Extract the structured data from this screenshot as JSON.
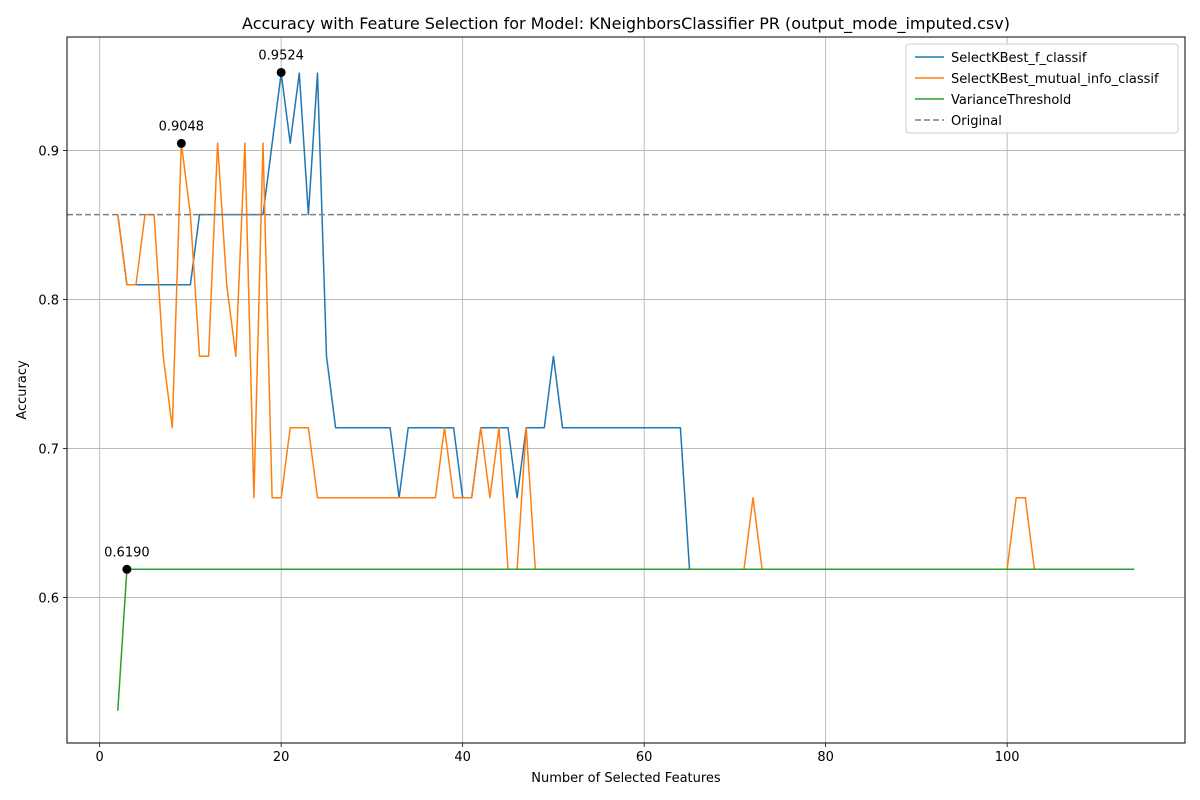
{
  "chart_data": {
    "type": "line",
    "title": "Accuracy with Feature Selection for Model: KNeighborsClassifier PR (output_mode_imputed.csv)",
    "xlabel": "Number of Selected Features",
    "ylabel": "Accuracy",
    "xlim": [
      -3.6,
      119.6
    ],
    "ylim": [
      0.5024,
      0.9762
    ],
    "xticks": [
      0,
      20,
      40,
      60,
      80,
      100
    ],
    "xtick_labels": [
      "0",
      "20",
      "40",
      "60",
      "80",
      "100"
    ],
    "yticks": [
      0.6,
      0.7,
      0.8,
      0.9
    ],
    "ytick_labels": [
      "0.6",
      "0.7",
      "0.8",
      "0.9"
    ],
    "grid": true,
    "legend_position": "top-right",
    "series": [
      {
        "name": "SelectKBest_f_classif",
        "color": "#1f77b4",
        "style": "solid",
        "points": [
          [
            2,
            0.857
          ],
          [
            3,
            0.81
          ],
          [
            10,
            0.81
          ],
          [
            11,
            0.857
          ],
          [
            18,
            0.857
          ],
          [
            20,
            0.952
          ],
          [
            21,
            0.905
          ],
          [
            22,
            0.952
          ],
          [
            23,
            0.857
          ],
          [
            24,
            0.952
          ],
          [
            25,
            0.762
          ],
          [
            26,
            0.714
          ],
          [
            32,
            0.714
          ],
          [
            33,
            0.667
          ],
          [
            34,
            0.714
          ],
          [
            39,
            0.714
          ],
          [
            40,
            0.667
          ],
          [
            41,
            0.667
          ],
          [
            42,
            0.714
          ],
          [
            45,
            0.714
          ],
          [
            46,
            0.667
          ],
          [
            47,
            0.714
          ],
          [
            49,
            0.714
          ],
          [
            50,
            0.762
          ],
          [
            51,
            0.714
          ],
          [
            64,
            0.714
          ],
          [
            65,
            0.619
          ],
          [
            114,
            0.619
          ]
        ]
      },
      {
        "name": "SelectKBest_mutual_info_classif",
        "color": "#ff7f0e",
        "style": "solid",
        "points": [
          [
            2,
            0.857
          ],
          [
            3,
            0.81
          ],
          [
            4,
            0.81
          ],
          [
            5,
            0.857
          ],
          [
            6,
            0.857
          ],
          [
            7,
            0.762
          ],
          [
            8,
            0.714
          ],
          [
            9,
            0.905
          ],
          [
            10,
            0.857
          ],
          [
            11,
            0.762
          ],
          [
            12,
            0.762
          ],
          [
            13,
            0.905
          ],
          [
            14,
            0.81
          ],
          [
            15,
            0.762
          ],
          [
            16,
            0.905
          ],
          [
            17,
            0.667
          ],
          [
            18,
            0.905
          ],
          [
            19,
            0.667
          ],
          [
            20,
            0.667
          ],
          [
            21,
            0.714
          ],
          [
            23,
            0.714
          ],
          [
            24,
            0.667
          ],
          [
            37,
            0.667
          ],
          [
            38,
            0.714
          ],
          [
            39,
            0.667
          ],
          [
            41,
            0.667
          ],
          [
            42,
            0.714
          ],
          [
            43,
            0.667
          ],
          [
            44,
            0.714
          ],
          [
            45,
            0.619
          ],
          [
            46,
            0.619
          ],
          [
            47,
            0.714
          ],
          [
            48,
            0.619
          ],
          [
            71,
            0.619
          ],
          [
            72,
            0.667
          ],
          [
            73,
            0.619
          ],
          [
            100,
            0.619
          ],
          [
            101,
            0.667
          ],
          [
            102,
            0.667
          ],
          [
            103,
            0.619
          ],
          [
            114,
            0.619
          ]
        ]
      },
      {
        "name": "VarianceThreshold",
        "color": "#2ca02c",
        "style": "solid",
        "points": [
          [
            2,
            0.524
          ],
          [
            3,
            0.619
          ],
          [
            114,
            0.619
          ]
        ]
      },
      {
        "name": "Original",
        "color": "#7f7f7f",
        "style": "dashed",
        "value": 0.857
      }
    ],
    "annotations": [
      {
        "x": 20,
        "y": 0.9524,
        "text": "0.9524"
      },
      {
        "x": 9,
        "y": 0.9048,
        "text": "0.9048"
      },
      {
        "x": 3,
        "y": 0.619,
        "text": "0.6190"
      }
    ]
  }
}
